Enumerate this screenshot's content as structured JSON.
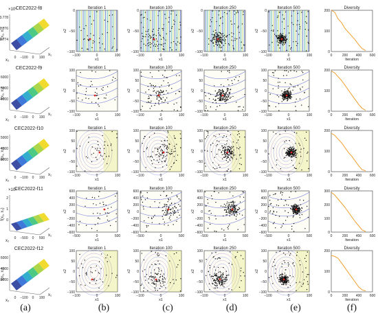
{
  "chart_data": {
    "type": "scatter",
    "iteration_titles": [
      "Iteration 1",
      "Iteration 100",
      "Iteration 250",
      "Iteration 500"
    ],
    "diversity_title": "Diversity",
    "iteration_label": "Iteration",
    "diversity_x_ticks": [
      "0",
      "200",
      "400",
      "600"
    ],
    "scatter_xlabel": "x1",
    "scatter_ylabel": "x2",
    "column_labels": [
      "(a)",
      "(b)",
      "(c)",
      "(d)",
      "(e)",
      "(f)"
    ],
    "colors": {
      "points": "#111111",
      "best": "#e0241f",
      "diversity": "#f0a030",
      "contour_blue": "#3340c8",
      "contour_yellow": "#dce040"
    },
    "rows": [
      {
        "function": "CEC2022-f8",
        "surface_exponent": "×10⁴",
        "surface_z_ticks": [
          "3.778",
          "3.776",
          "3.774"
        ],
        "surface_z_label": "f(x₁, x₂)",
        "surface_x_ticks": [
          "0",
          "−100",
          "0",
          "100"
        ],
        "surface_axis_labels": [
          "x₂",
          "x₁"
        ],
        "x_ticks": [
          "−100",
          "0",
          "100"
        ],
        "y_ticks": [
          "0",
          "−50",
          "−100"
        ],
        "diversity_y_ticks": [
          "200",
          "100",
          "0"
        ],
        "diversity_curve": [
          [
            0,
            215
          ],
          [
            50,
            205
          ],
          [
            100,
            170
          ],
          [
            150,
            150
          ],
          [
            200,
            120
          ],
          [
            250,
            100
          ],
          [
            300,
            80
          ],
          [
            350,
            60
          ],
          [
            400,
            35
          ],
          [
            450,
            15
          ],
          [
            500,
            5
          ]
        ]
      },
      {
        "function": "CEC2022-f9",
        "surface_exponent": "",
        "surface_z_ticks": [
          "6000",
          "5000",
          "4000"
        ],
        "surface_z_label": "f(x₁, x₂)",
        "surface_x_ticks": [
          "0",
          "−100",
          "0",
          "100"
        ],
        "surface_axis_labels": [
          "x₂",
          "x₁"
        ],
        "x_ticks": [
          "−100",
          "0",
          "100"
        ],
        "y_ticks": [
          "100",
          "50",
          "0",
          "−50",
          "−100"
        ],
        "diversity_y_ticks": [
          "200",
          "100",
          "0"
        ],
        "diversity_curve": [
          [
            0,
            210
          ],
          [
            50,
            200
          ],
          [
            100,
            180
          ],
          [
            150,
            160
          ],
          [
            200,
            135
          ],
          [
            250,
            110
          ],
          [
            300,
            85
          ],
          [
            350,
            60
          ],
          [
            400,
            35
          ],
          [
            450,
            15
          ],
          [
            500,
            5
          ]
        ]
      },
      {
        "function": "CEC2022-f10",
        "surface_exponent": "",
        "surface_z_ticks": [
          "5000",
          "4000",
          "3000"
        ],
        "surface_z_label": "f(x₁, x₂)",
        "surface_x_ticks": [
          "0",
          "−100",
          "0",
          "100"
        ],
        "surface_axis_labels": [
          "x₂",
          "x₁"
        ],
        "x_ticks": [
          "−100",
          "0",
          "100"
        ],
        "y_ticks": [
          "100",
          "50",
          "0",
          "−50",
          "−100"
        ],
        "diversity_y_ticks": [
          "200",
          "100",
          "0"
        ],
        "diversity_curve": [
          [
            0,
            200
          ],
          [
            50,
            190
          ],
          [
            100,
            170
          ],
          [
            150,
            150
          ],
          [
            200,
            125
          ],
          [
            250,
            100
          ],
          [
            300,
            80
          ],
          [
            350,
            55
          ],
          [
            400,
            30
          ],
          [
            450,
            10
          ],
          [
            500,
            5
          ]
        ]
      },
      {
        "function": "CEC2022-f11",
        "surface_exponent": "×10⁸",
        "surface_z_ticks": [
          "2",
          "1",
          "0"
        ],
        "surface_z_label": "f(x₁, x₂)",
        "surface_x_ticks": [
          "0",
          "−500",
          "0",
          "500"
        ],
        "surface_axis_labels": [
          "x₂",
          "x₁"
        ],
        "x_ticks": [
          "−500",
          "0",
          "500"
        ],
        "y_ticks": [
          "600",
          "400",
          "200",
          "0",
          "−200",
          "−400",
          "−600"
        ],
        "diversity_y_ticks": [
          "300",
          "200",
          "100",
          "0"
        ],
        "diversity_curve": [
          [
            0,
            290
          ],
          [
            50,
            270
          ],
          [
            100,
            240
          ],
          [
            150,
            210
          ],
          [
            200,
            180
          ],
          [
            250,
            145
          ],
          [
            300,
            110
          ],
          [
            350,
            75
          ],
          [
            400,
            45
          ],
          [
            450,
            15
          ],
          [
            500,
            5
          ]
        ]
      },
      {
        "function": "CEC2022-f12",
        "surface_exponent": "",
        "surface_z_ticks": [
          "6000",
          "4000",
          "2000"
        ],
        "surface_z_label": "f(x₁, x₂)",
        "surface_x_ticks": [
          "0",
          "−100",
          "0",
          "100"
        ],
        "surface_axis_labels": [
          "x₂",
          "x₁"
        ],
        "x_ticks": [
          "−100",
          "0",
          "100"
        ],
        "y_ticks": [
          "100",
          "50",
          "0",
          "−50",
          "−100"
        ],
        "diversity_y_ticks": [
          "200",
          "100",
          "0"
        ],
        "diversity_curve": [
          [
            0,
            190
          ],
          [
            50,
            185
          ],
          [
            100,
            175
          ],
          [
            150,
            150
          ],
          [
            200,
            125
          ],
          [
            250,
            100
          ],
          [
            300,
            75
          ],
          [
            350,
            50
          ],
          [
            400,
            25
          ],
          [
            450,
            10
          ],
          [
            500,
            5
          ]
        ]
      }
    ]
  }
}
